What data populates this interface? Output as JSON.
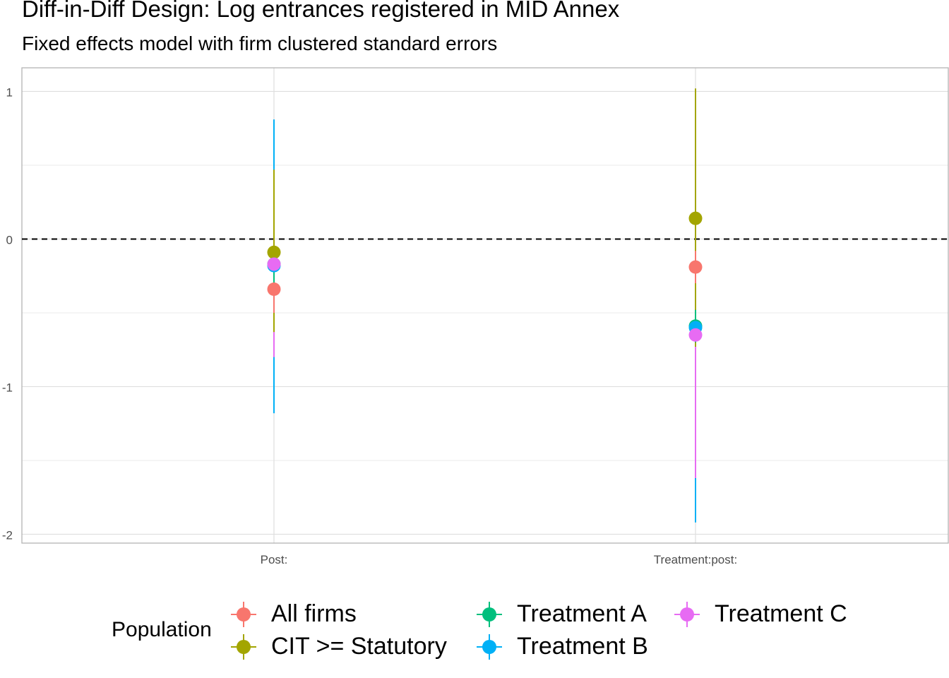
{
  "title": "Diff-in-Diff Design: Log entrances registered in MID Annex",
  "subtitle": "Fixed effects model with firm clustered standard errors",
  "legend": {
    "title": "Population",
    "items": [
      {
        "label": "All firms",
        "color": "#F8766D"
      },
      {
        "label": "CIT >= Statutory",
        "color": "#A3A500"
      },
      {
        "label": "Treatment A",
        "color": "#00BF7D"
      },
      {
        "label": "Treatment B",
        "color": "#00B0F6"
      },
      {
        "label": "Treatment C",
        "color": "#E76BF3"
      }
    ]
  },
  "chart_data": {
    "type": "scatter",
    "title": "Diff-in-Diff Design: Log entrances registered in MID Annex",
    "subtitle": "Fixed effects model with firm clustered standard errors",
    "categories": [
      "Post:",
      "Treatment:post:"
    ],
    "ylim": [
      -2.06,
      1.16
    ],
    "yticks": [
      -2,
      -1,
      0,
      1
    ],
    "reference_line": 0,
    "grid": true,
    "legend_position": "bottom",
    "series": [
      {
        "name": "All firms",
        "color": "#F8766D",
        "estimates": [
          -0.34,
          -0.19
        ],
        "ci_low": [
          -0.5,
          -0.3
        ],
        "ci_high": [
          -0.18,
          -0.08
        ]
      },
      {
        "name": "CIT >= Statutory",
        "color": "#A3A500",
        "estimates": [
          -0.09,
          0.14
        ],
        "ci_low": [
          -0.63,
          -0.73
        ],
        "ci_high": [
          0.47,
          1.02
        ]
      },
      {
        "name": "Treatment A",
        "color": "#00BF7D",
        "estimates": [
          -0.17,
          -0.59
        ],
        "ci_low": [
          -0.3,
          -0.7
        ],
        "ci_high": [
          -0.05,
          -0.48
        ]
      },
      {
        "name": "Treatment B",
        "color": "#00B0F6",
        "estimates": [
          -0.18,
          -0.6
        ],
        "ci_low": [
          -1.18,
          -1.92
        ],
        "ci_high": [
          0.81,
          0.7
        ]
      },
      {
        "name": "Treatment C",
        "color": "#E76BF3",
        "estimates": [
          -0.17,
          -0.65
        ],
        "ci_low": [
          -0.8,
          -1.62
        ],
        "ci_high": [
          0.4,
          0.3
        ]
      }
    ]
  }
}
